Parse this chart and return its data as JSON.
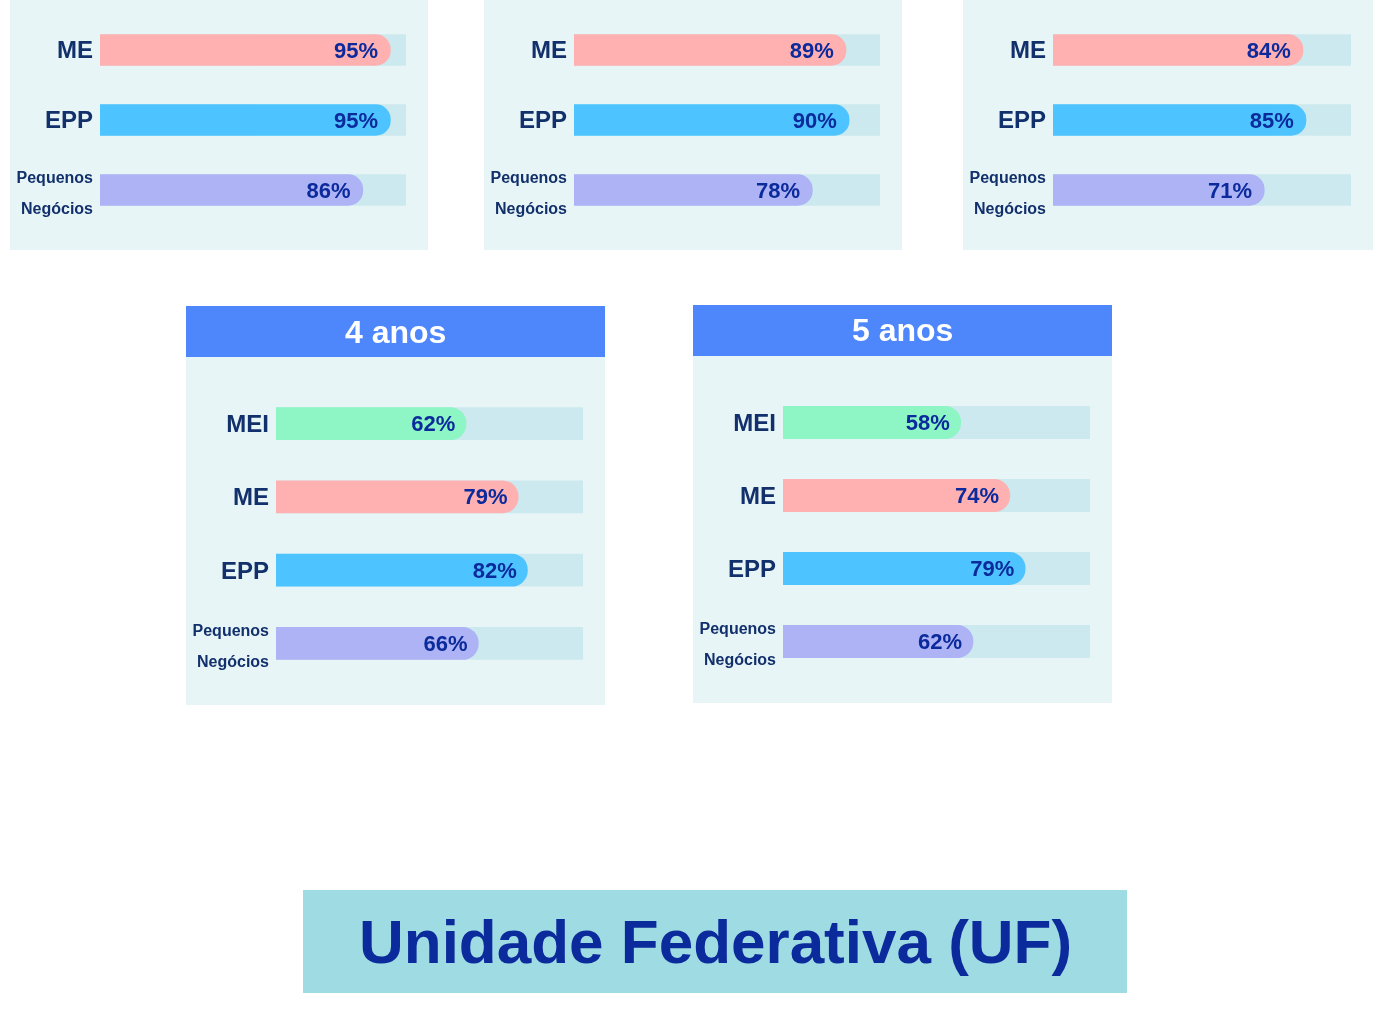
{
  "chart_data": [
    {
      "type": "bar",
      "orientation": "horizontal",
      "categories": [
        "ME",
        "EPP",
        "Pequenos Negócios"
      ],
      "values": [
        95,
        95,
        86
      ],
      "value_labels": [
        "95%",
        "95%",
        "86%"
      ],
      "colors": [
        "#ffb1b1",
        "#4dc3ff",
        "#adb3f5"
      ],
      "xlim": [
        0,
        100
      ],
      "tick_labels": "y"
    },
    {
      "type": "bar",
      "orientation": "horizontal",
      "categories": [
        "ME",
        "EPP",
        "Pequenos Negócios"
      ],
      "values": [
        89,
        90,
        78
      ],
      "value_labels": [
        "89%",
        "90%",
        "78%"
      ],
      "colors": [
        "#ffb1b1",
        "#4dc3ff",
        "#adb3f5"
      ],
      "xlim": [
        0,
        100
      ],
      "tick_labels": "y"
    },
    {
      "type": "bar",
      "orientation": "horizontal",
      "categories": [
        "ME",
        "EPP",
        "Pequenos Negócios"
      ],
      "values": [
        84,
        85,
        71
      ],
      "value_labels": [
        "84%",
        "85%",
        "71%"
      ],
      "colors": [
        "#ffb1b1",
        "#4dc3ff",
        "#adb3f5"
      ],
      "xlim": [
        0,
        100
      ],
      "tick_labels": "y"
    },
    {
      "type": "bar",
      "orientation": "horizontal",
      "title": "4 anos",
      "categories": [
        "MEI",
        "ME",
        "EPP",
        "Pequenos Negócios"
      ],
      "values": [
        62,
        79,
        82,
        66
      ],
      "value_labels": [
        "62%",
        "79%",
        "82%",
        "66%"
      ],
      "colors": [
        "#8ef5c4",
        "#ffb1b1",
        "#4dc3ff",
        "#adb3f5"
      ],
      "xlim": [
        0,
        100
      ],
      "tick_labels": "y"
    },
    {
      "type": "bar",
      "orientation": "horizontal",
      "title": "5 anos",
      "categories": [
        "MEI",
        "ME",
        "EPP",
        "Pequenos Negócios"
      ],
      "values": [
        58,
        74,
        79,
        62
      ],
      "value_labels": [
        "58%",
        "74%",
        "79%",
        "62%"
      ],
      "colors": [
        "#8ef5c4",
        "#ffb1b1",
        "#4dc3ff",
        "#adb3f5"
      ],
      "xlim": [
        0,
        100
      ],
      "tick_labels": "y"
    },
    {
      "type": "other",
      "title": "Unidade Federativa (UF)"
    }
  ]
}
